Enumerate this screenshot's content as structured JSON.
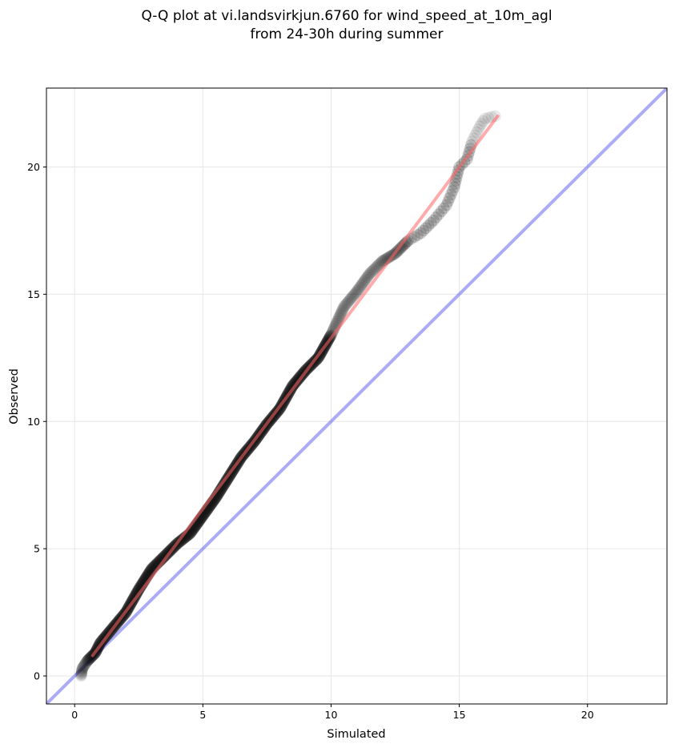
{
  "chart_data": {
    "type": "scatter",
    "title_lines": [
      "Q-Q plot at vi.landsvirkjun.6760 for wind_speed_at_10m_agl",
      "from 24-30h during summer"
    ],
    "xlabel": "Simulated",
    "ylabel": "Observed",
    "xlim": [
      -1.1,
      23.1
    ],
    "ylim": [
      -1.1,
      23.1
    ],
    "x_ticks": [
      0,
      5,
      10,
      15,
      20
    ],
    "y_ticks": [
      0,
      5,
      10,
      15,
      20
    ],
    "grid": true,
    "colors": {
      "points": "#000000",
      "fit_line": "#ff6666",
      "identity_line": "#6666ee",
      "grid": "#e6e6e6"
    },
    "anchors": [
      [
        0.25,
        0.0
      ],
      [
        0.3,
        0.3
      ],
      [
        0.5,
        0.6
      ],
      [
        0.8,
        0.9
      ],
      [
        1.0,
        1.3
      ],
      [
        1.5,
        1.9
      ],
      [
        2.0,
        2.5
      ],
      [
        2.5,
        3.4
      ],
      [
        3.0,
        4.2
      ],
      [
        3.5,
        4.7
      ],
      [
        4.0,
        5.2
      ],
      [
        4.5,
        5.6
      ],
      [
        5.0,
        6.3
      ],
      [
        5.5,
        7.0
      ],
      [
        6.0,
        7.8
      ],
      [
        6.5,
        8.6
      ],
      [
        7.0,
        9.2
      ],
      [
        7.5,
        9.9
      ],
      [
        8.0,
        10.5
      ],
      [
        8.5,
        11.4
      ],
      [
        9.0,
        12.0
      ],
      [
        9.5,
        12.5
      ],
      [
        10.0,
        13.4
      ],
      [
        10.5,
        14.5
      ],
      [
        11.0,
        15.1
      ],
      [
        11.5,
        15.8
      ],
      [
        12.0,
        16.3
      ],
      [
        12.5,
        16.6
      ],
      [
        13.0,
        17.1
      ],
      [
        13.5,
        17.4
      ],
      [
        14.0,
        17.9
      ],
      [
        14.5,
        18.5
      ],
      [
        14.8,
        19.2
      ],
      [
        15.0,
        20.0
      ],
      [
        15.3,
        20.3
      ],
      [
        15.5,
        21.0
      ],
      [
        15.8,
        21.6
      ],
      [
        16.0,
        21.9
      ],
      [
        16.4,
        22.0
      ]
    ],
    "fit_line": [
      [
        0.7,
        0.8
      ],
      [
        16.5,
        22.0
      ]
    ],
    "identity_line": [
      [
        -1.1,
        -1.1
      ],
      [
        23.1,
        23.1
      ]
    ]
  }
}
